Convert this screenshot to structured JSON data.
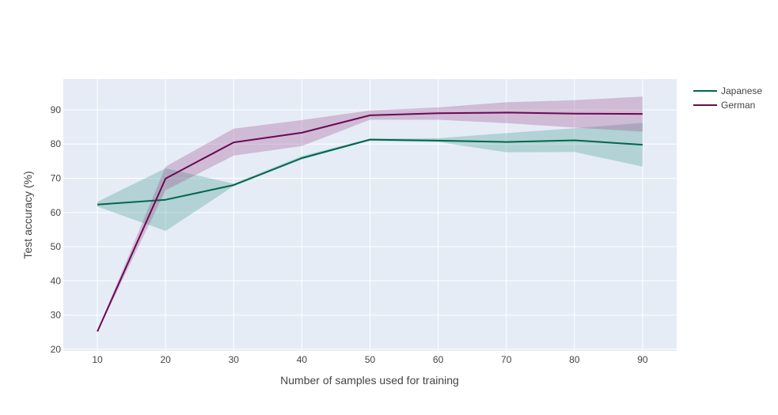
{
  "chart_data": {
    "type": "line",
    "title": "",
    "xlabel": "Number of samples used for training",
    "ylabel": "Test accuracy (%)",
    "x": [
      10,
      20,
      30,
      40,
      50,
      60,
      70,
      80,
      90
    ],
    "xlim": [
      5,
      95
    ],
    "ylim": [
      19.5,
      99
    ],
    "xticks": [
      10,
      20,
      30,
      40,
      50,
      60,
      70,
      80,
      90
    ],
    "yticks": [
      20,
      30,
      40,
      50,
      60,
      70,
      80,
      90
    ],
    "grid": true,
    "legend_position": "top-right",
    "series": [
      {
        "name": "Japanese",
        "color": "#00664b",
        "band_color": "#3a9488",
        "values": [
          62.3,
          63.7,
          68.0,
          75.9,
          81.3,
          81.0,
          80.6,
          81.1,
          79.8
        ],
        "lower": [
          61.7,
          54.6,
          67.7,
          75.5,
          81.0,
          80.6,
          77.6,
          77.7,
          73.4
        ],
        "upper": [
          63.1,
          72.9,
          68.4,
          76.5,
          81.6,
          81.7,
          83.2,
          84.6,
          86.2
        ]
      },
      {
        "name": "German",
        "color": "#6b0a55",
        "band_color": "#9c4a8c",
        "values": [
          25.2,
          69.9,
          80.5,
          83.3,
          88.4,
          89.0,
          89.2,
          88.9,
          88.8
        ],
        "lower": [
          25.0,
          66.5,
          76.6,
          79.4,
          87.1,
          87.1,
          86.1,
          84.8,
          83.6
        ],
        "upper": [
          25.4,
          73.4,
          84.5,
          87.0,
          89.8,
          90.7,
          92.2,
          92.8,
          93.9
        ]
      }
    ]
  }
}
